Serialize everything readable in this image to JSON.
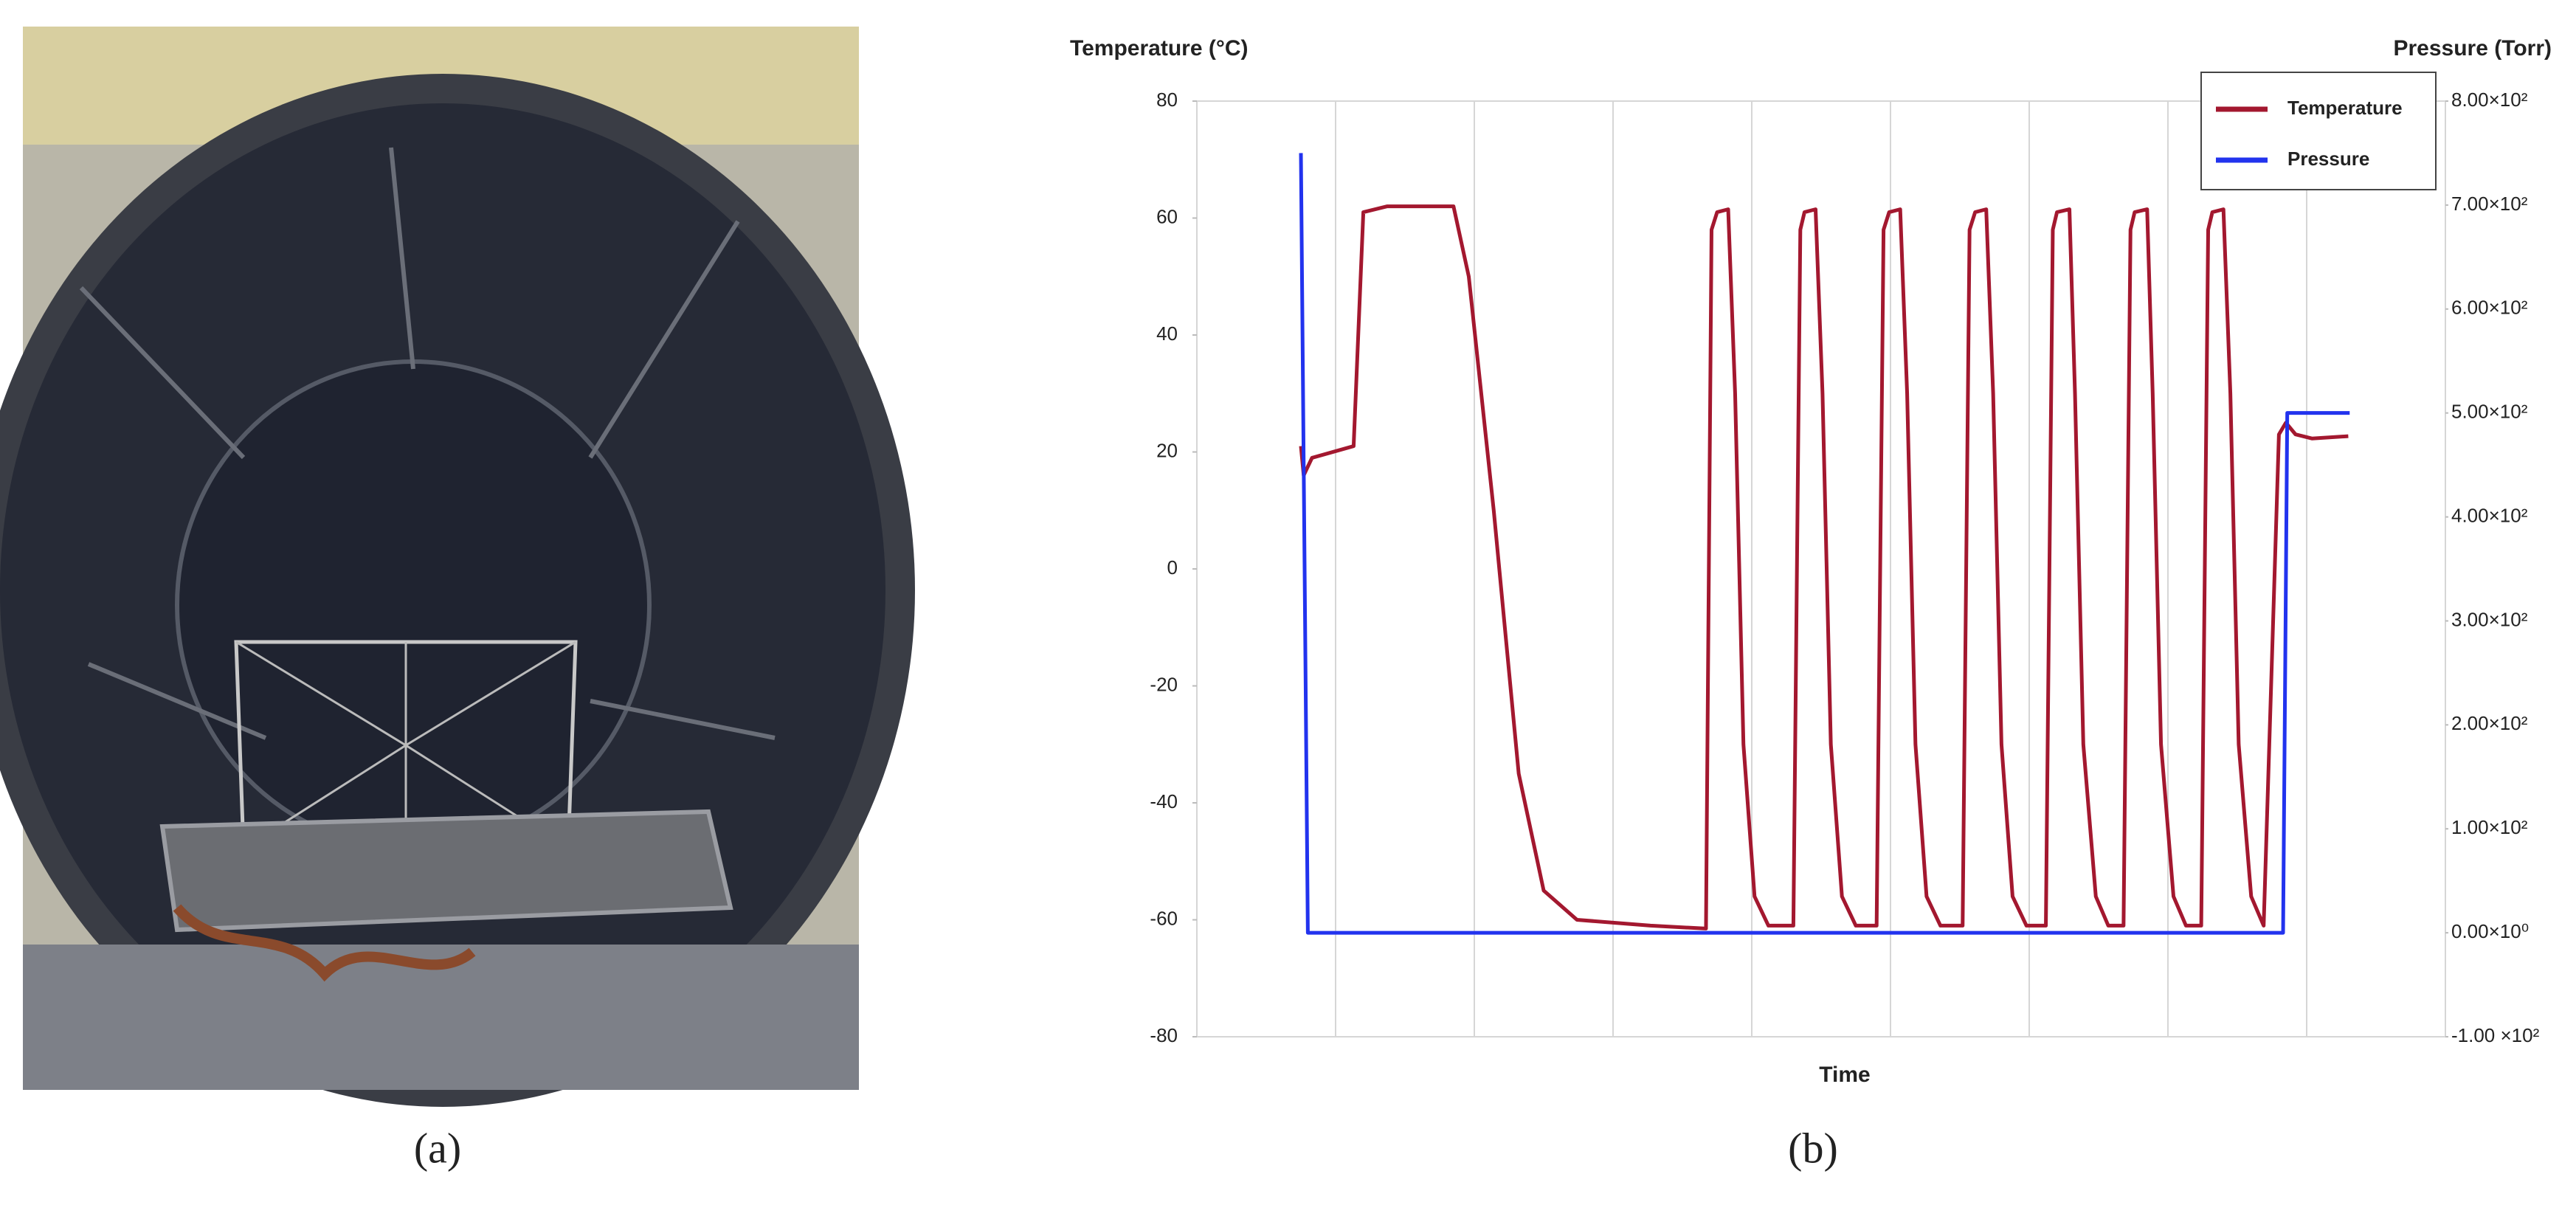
{
  "captions": [
    "(a)",
    "(b)"
  ],
  "chart_data": {
    "type": "line",
    "y_label": "Temperature (°C)",
    "y2_label": "Pressure (Torr)",
    "x_label": "Time",
    "xlim": [
      0,
      9
    ],
    "xticks": [
      0,
      1,
      2,
      3,
      4,
      5,
      6,
      7,
      8,
      9
    ],
    "grid": true,
    "ylim": [
      -80,
      80
    ],
    "yticks": [
      -80,
      -60,
      -40,
      -20,
      0,
      20,
      40,
      60,
      80
    ],
    "y2lim": [
      -100,
      800
    ],
    "y2ticks": [
      {
        "value": -100,
        "label": "-1.00 ×10²"
      },
      {
        "value": 0,
        "label": "0.00×10⁰"
      },
      {
        "value": 100,
        "label": "1.00×10²"
      },
      {
        "value": 200,
        "label": "2.00×10²"
      },
      {
        "value": 300,
        "label": "3.00×10²"
      },
      {
        "value": 400,
        "label": "4.00×10²"
      },
      {
        "value": 500,
        "label": "5.00×10²"
      },
      {
        "value": 600,
        "label": "6.00×10²"
      },
      {
        "value": 700,
        "label": "7.00×10²"
      },
      {
        "value": 800,
        "label": "8.00×10²"
      }
    ],
    "legend": "top-right",
    "series": [
      {
        "name": "Temperature",
        "color": "#a3182f",
        "x": [
          0.75,
          0.77,
          0.83,
          1.13,
          1.2,
          1.37,
          1.85,
          1.96,
          2.14,
          2.32,
          2.5,
          2.74,
          3.27,
          3.67,
          3.71,
          3.75,
          3.83,
          3.88,
          3.94,
          4.02,
          4.12,
          4.3,
          4.35,
          4.38,
          4.46,
          4.51,
          4.57,
          4.65,
          4.75,
          4.9,
          4.95,
          4.99,
          5.07,
          5.12,
          5.18,
          5.26,
          5.36,
          5.52,
          5.57,
          5.61,
          5.69,
          5.74,
          5.8,
          5.88,
          5.98,
          6.12,
          6.17,
          6.2,
          6.29,
          6.33,
          6.39,
          6.48,
          6.57,
          6.68,
          6.73,
          6.76,
          6.85,
          6.89,
          6.95,
          7.04,
          7.13,
          7.24,
          7.29,
          7.32,
          7.4,
          7.45,
          7.51,
          7.6,
          7.69,
          7.8,
          7.85,
          7.92,
          8.04,
          8.3
        ],
        "values": [
          21,
          16,
          19,
          21,
          61,
          62,
          62,
          50,
          10,
          -35,
          -55,
          -60,
          -61,
          -61.5,
          58,
          61,
          61.5,
          30,
          -30,
          -56,
          -61,
          -61,
          58,
          61,
          61.5,
          30,
          -30,
          -56,
          -61,
          -61,
          58,
          61,
          61.5,
          30,
          -30,
          -56,
          -61,
          -61,
          58,
          61,
          61.5,
          30,
          -30,
          -56,
          -61,
          -61,
          58,
          61,
          61.5,
          30,
          -30,
          -56,
          -61,
          -61,
          58,
          61,
          61.5,
          30,
          -30,
          -56,
          -61,
          -61,
          58,
          61,
          61.5,
          30,
          -30,
          -56,
          -61,
          23,
          25,
          23,
          22.3,
          22.7
        ]
      },
      {
        "name": "Pressure",
        "color": "#2233ee",
        "axis": "y2",
        "x": [
          0.75,
          0.8,
          7.83,
          7.86,
          8.31
        ],
        "values": [
          750,
          0,
          0,
          500,
          500
        ]
      }
    ]
  }
}
